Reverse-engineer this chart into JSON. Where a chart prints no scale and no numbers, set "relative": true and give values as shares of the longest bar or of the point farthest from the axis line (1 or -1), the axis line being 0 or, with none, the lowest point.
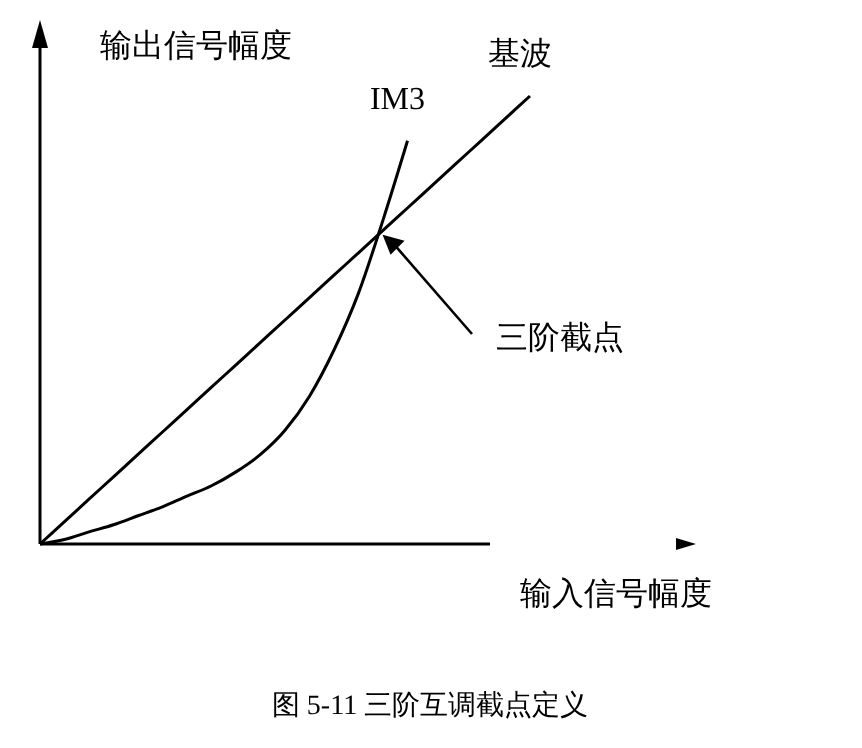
{
  "chart_data": {
    "type": "line",
    "relative": true,
    "xlabel": "输入信号幅度",
    "ylabel": "输出信号幅度",
    "categories": [
      null,
      null,
      null,
      null,
      null,
      null,
      null,
      null,
      null,
      null,
      null,
      null,
      null,
      null,
      null,
      null,
      null,
      null,
      null,
      null,
      null
    ],
    "series": [
      {
        "name": "基波",
        "color": "#000000",
        "values": [
          0,
          0.05,
          0.1,
          0.15,
          0.2,
          0.25,
          0.3,
          0.35,
          0.4,
          0.45,
          0.5,
          0.55,
          0.6,
          0.65,
          0.7,
          0.75,
          0.8,
          0.85,
          0.9,
          0.95,
          1
        ]
      },
      {
        "name": "IM3",
        "color": "#000000",
        "values": [
          0,
          0.01,
          0.027,
          0.043,
          0.063,
          0.083,
          0.107,
          0.13,
          0.161,
          0.2,
          0.254,
          0.33,
          0.433,
          0.56,
          0.723,
          0.9,
          null,
          null,
          null,
          null,
          null
        ]
      }
    ],
    "annotations": [
      "三阶截点",
      "图 5-11  三阶互调截点定义"
    ]
  }
}
